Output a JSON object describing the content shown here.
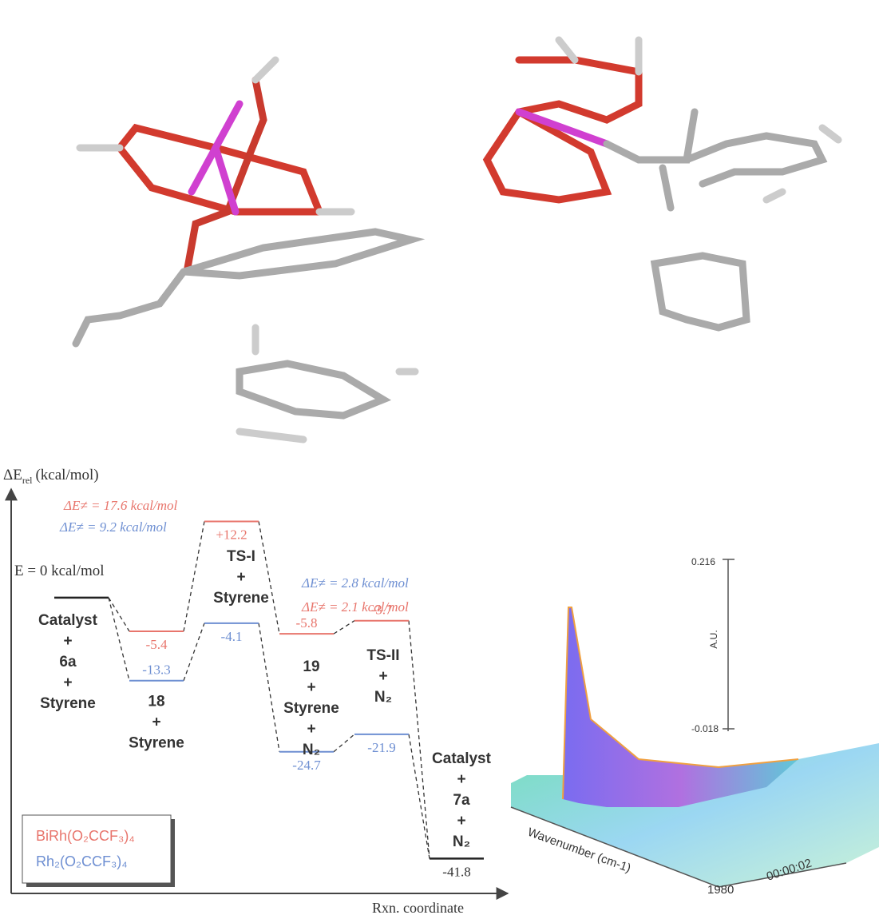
{
  "chart_data": {
    "type": "energy-profile",
    "y_label": "ΔE",
    "y_label_sub": "rel",
    "y_label_unit": "(kcal/mol)",
    "x_label": "Rxn. coordinate",
    "zero_label": "E = 0 kcal/mol",
    "ylim": [
      -47,
      17
    ],
    "categories": [
      [
        "Catalyst",
        "+",
        "6a",
        "+",
        "Styrene"
      ],
      [
        "18",
        "+",
        "Styrene"
      ],
      [
        "TS-I",
        "+",
        "Styrene"
      ],
      [
        "19",
        "+",
        "Styrene",
        "+",
        "N₂"
      ],
      [
        "TS-II",
        "+",
        "N₂"
      ],
      [
        "Catalyst",
        "+",
        "7a",
        "+",
        "N₂"
      ]
    ],
    "series": [
      {
        "color": "#222222",
        "values": [
          0,
          null,
          null,
          null,
          null,
          -41.8
        ],
        "value_labels": [
          null,
          null,
          null,
          null,
          null,
          "-41.8"
        ]
      },
      {
        "name": "BiRh(O₂CCF₃)₄",
        "color": "#e8756c",
        "values": [
          null,
          -5.4,
          12.2,
          -5.8,
          -3.7,
          null
        ],
        "value_labels": [
          null,
          "-5.4",
          "+12.2",
          "-5.8",
          "-3.7",
          null
        ]
      },
      {
        "name": "Rh₂(O₂CCF₃)₄",
        "color": "#6e8fd2",
        "values": [
          null,
          -13.3,
          -4.1,
          -24.7,
          -21.9,
          null
        ],
        "value_labels": [
          null,
          "-13.3",
          "-4.1",
          "-24.7",
          "-21.9",
          null
        ]
      }
    ],
    "annotations": [
      {
        "text": "ΔE≠ = 17.6 kcal/mol",
        "color": "#e8756c"
      },
      {
        "text": "ΔE≠ = 9.2 kcal/mol",
        "color": "#6e8fd2"
      },
      {
        "text": "ΔE≠ = 2.8 kcal/mol",
        "color": "#6e8fd2"
      },
      {
        "text": "ΔE≠ = 2.1 kcal/mol",
        "color": "#e8756c"
      }
    ]
  },
  "spectrum_plot": {
    "z_top": "0.216",
    "z_label": "A.U.",
    "z_bottom": "-0.018",
    "x_label": "Wavenumber (cm-1)",
    "x_tick": "1980",
    "t_tick": "00:00:02"
  }
}
